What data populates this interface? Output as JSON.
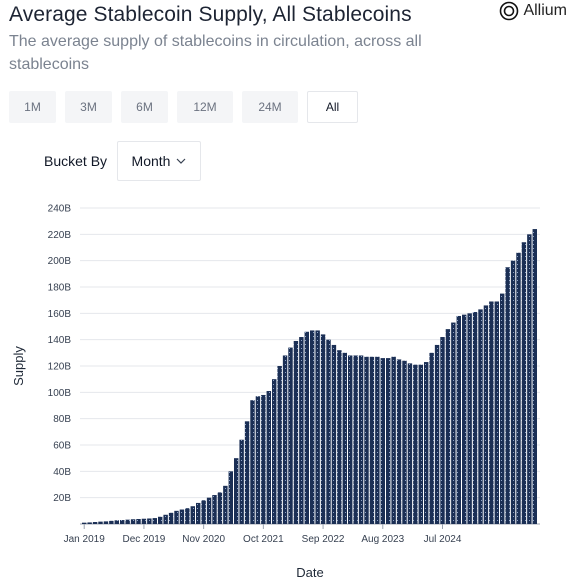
{
  "header": {
    "title": "Average Stablecoin Supply, All Stablecoins",
    "subtitle": "The average supply of stablecoins in circulation, across all stablecoins",
    "brand": "Allium"
  },
  "range_buttons": [
    {
      "label": "1M",
      "active": false
    },
    {
      "label": "3M",
      "active": false
    },
    {
      "label": "6M",
      "active": false
    },
    {
      "label": "12M",
      "active": false
    },
    {
      "label": "24M",
      "active": false
    },
    {
      "label": "All",
      "active": true
    }
  ],
  "bucket": {
    "label": "Bucket By",
    "selected": "Month"
  },
  "colors": {
    "bar": "#1b2f55",
    "bar_dots": "#8fa3c7",
    "grid": "#e5e7eb"
  },
  "chart_data": {
    "type": "bar",
    "xlabel": "Date",
    "ylabel": "Supply",
    "ylim": [
      0,
      240
    ],
    "y_ticks": [
      "240B",
      "220B",
      "200B",
      "180B",
      "160B",
      "140B",
      "120B",
      "100B",
      "80B",
      "60B",
      "40B",
      "20B"
    ],
    "y_tick_values": [
      240,
      220,
      200,
      180,
      160,
      140,
      120,
      100,
      80,
      60,
      40,
      20
    ],
    "x_tick_labels": [
      "Jan 2019",
      "Dec 2019",
      "Nov 2020",
      "Oct 2021",
      "Sep 2022",
      "Aug 2023",
      "Jul 2024"
    ],
    "x_tick_index": [
      0,
      11,
      22,
      33,
      44,
      55,
      66
    ],
    "grid": true,
    "unit": "B",
    "start": "Jan 2019",
    "values": [
      1,
      1.2,
      1.5,
      1.8,
      2,
      2.4,
      2.8,
      3,
      3.3,
      3.6,
      3.8,
      4,
      4.2,
      4.5,
      5.5,
      7,
      8.5,
      10,
      11,
      12,
      13.5,
      16,
      18,
      20,
      22,
      24,
      29,
      40,
      50,
      64,
      78,
      94,
      97,
      98,
      101,
      110,
      120,
      128,
      134,
      139,
      142,
      146,
      147,
      147,
      144,
      140,
      136,
      132,
      130,
      128,
      128,
      128,
      127,
      127,
      127,
      126,
      126,
      127,
      125,
      124,
      122,
      121,
      121,
      123,
      130,
      136,
      142,
      148,
      153,
      158,
      159,
      160,
      161,
      163,
      166,
      169,
      169,
      175,
      195,
      200,
      206,
      214,
      220,
      224
    ]
  }
}
